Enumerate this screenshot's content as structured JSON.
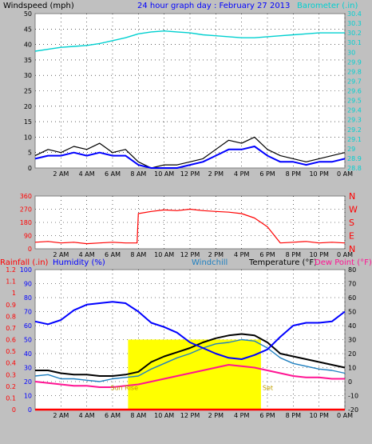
{
  "title": "24 hour graph day : February 27 2013",
  "x_labels": [
    "2 AM",
    "4 AM",
    "6 AM",
    "8 AM",
    "10 AM",
    "12 PM",
    "2 PM",
    "4 PM",
    "6 PM",
    "8 PM",
    "10 PM",
    "0 AM"
  ],
  "colors": {
    "background": "#c0c0c0",
    "plot": "#ffffff",
    "windspeed": "#000000",
    "gust_avg": "#0000ff",
    "barometer": "#00d0d0",
    "direction": "#ff0000",
    "humidity": "#0000ff",
    "windchill": "#2080c0",
    "temperature": "#000000",
    "dewpoint": "#ff1493",
    "rainfall": "#ff0000",
    "solar": "#ffff00"
  },
  "chart_data": [
    {
      "type": "line",
      "name": "wind_barometer",
      "left_axis_label": "Windspeed (mph)",
      "right_axis_label": "Barometer (.in)",
      "ylim_left": [
        0,
        50
      ],
      "left_ticks": [
        "0",
        "5",
        "10",
        "15",
        "20",
        "25",
        "30",
        "35",
        "40",
        "45",
        "50"
      ],
      "ylim_right": [
        28.8,
        30.4
      ],
      "right_ticks": [
        "28.8",
        "28.9",
        "29",
        "29.1",
        "29.2",
        "29.3",
        "29.4",
        "29.5",
        "29.6",
        "29.7",
        "29.8",
        "29.9",
        "30",
        "30.1",
        "30.2",
        "30.3",
        "30.4"
      ],
      "x_hours": [
        0,
        1,
        2,
        3,
        4,
        5,
        6,
        7,
        8,
        9,
        10,
        11,
        12,
        13,
        14,
        15,
        16,
        17,
        18,
        19,
        20,
        21,
        22,
        23,
        24
      ],
      "windspeed": [
        4,
        6,
        5,
        7,
        6,
        8,
        5,
        6,
        2,
        0,
        1,
        1,
        2,
        3,
        6,
        9,
        8,
        10,
        6,
        4,
        3,
        2,
        3,
        4,
        5
      ],
      "wind_avg": [
        3,
        4,
        4,
        5,
        4,
        5,
        4,
        4,
        1,
        0,
        0,
        0,
        1,
        2,
        4,
        6,
        6,
        7,
        4,
        2,
        2,
        1,
        2,
        2,
        3
      ],
      "barometer": [
        30.01,
        30.03,
        30.05,
        30.06,
        30.07,
        30.09,
        30.12,
        30.15,
        30.19,
        30.21,
        30.22,
        30.21,
        30.2,
        30.18,
        30.17,
        30.16,
        30.15,
        30.15,
        30.16,
        30.17,
        30.18,
        30.19,
        30.2,
        30.2,
        30.2
      ]
    },
    {
      "type": "line",
      "name": "wind_direction",
      "left_ticks": [
        "0",
        "90",
        "180",
        "270",
        "360"
      ],
      "ylim": [
        0,
        360
      ],
      "right_ticks": [
        "N",
        "E",
        "S",
        "W",
        "N"
      ],
      "x_hours": [
        0,
        1,
        2,
        3,
        4,
        5,
        6,
        7,
        7.9,
        8,
        9,
        10,
        11,
        12,
        13,
        14,
        15,
        16,
        17,
        18,
        19,
        20,
        21,
        22,
        23,
        24
      ],
      "direction": [
        45,
        50,
        40,
        45,
        35,
        40,
        45,
        40,
        40,
        240,
        255,
        265,
        260,
        270,
        260,
        255,
        250,
        240,
        210,
        150,
        40,
        45,
        50,
        40,
        45,
        40
      ]
    },
    {
      "type": "line",
      "name": "temperature_humidity",
      "labels": [
        "Rainfall (.in)",
        "Humidity (%)",
        "Windchill",
        "Temperature (°F)",
        "Dew Point (°F)"
      ],
      "rain_ticks": [
        "0",
        "0.1",
        "0.2",
        "0.3",
        "0.4",
        "0.5",
        "0.6",
        "0.7",
        "0.8",
        "0.9",
        "1",
        "1.1",
        "1.2"
      ],
      "ylim_rain": [
        0,
        1.2
      ],
      "humidity_ticks": [
        "0",
        "10",
        "20",
        "30",
        "40",
        "50",
        "60",
        "70",
        "80",
        "90",
        "100"
      ],
      "ylim_humidity": [
        0,
        100
      ],
      "temp_ticks": [
        "-20",
        "-10",
        "0",
        "10",
        "20",
        "30",
        "40",
        "50",
        "60",
        "70",
        "80"
      ],
      "ylim_temp": [
        -20,
        80
      ],
      "sun_rise_label": "Sun Rise",
      "sun_set_label": "Set",
      "sun_rise_hour": 7.2,
      "sun_set_hour": 17.5,
      "solar_level_temp": 30,
      "x_hours": [
        0,
        1,
        2,
        3,
        4,
        5,
        6,
        7,
        8,
        9,
        10,
        11,
        12,
        13,
        14,
        15,
        16,
        17,
        18,
        19,
        20,
        21,
        22,
        23,
        24
      ],
      "temperature": [
        8,
        8,
        6,
        5,
        5,
        4,
        4,
        5,
        7,
        14,
        18,
        21,
        24,
        28,
        31,
        33,
        34,
        33,
        28,
        20,
        18,
        16,
        14,
        12,
        10
      ],
      "humidity": [
        63,
        61,
        64,
        71,
        75,
        76,
        77,
        76,
        70,
        62,
        59,
        55,
        48,
        44,
        40,
        37,
        36,
        39,
        43,
        52,
        60,
        62,
        62,
        63,
        70
      ],
      "dewpoint": [
        0,
        -1,
        -2,
        -3,
        -3,
        -4,
        -4,
        -3,
        -2,
        0,
        2,
        4,
        6,
        8,
        10,
        12,
        11,
        10,
        8,
        6,
        4,
        3,
        3,
        2,
        2
      ],
      "windchill": [
        4,
        5,
        2,
        2,
        1,
        0,
        2,
        3,
        4,
        9,
        13,
        17,
        20,
        24,
        27,
        28,
        30,
        29,
        24,
        17,
        13,
        11,
        9,
        8,
        6
      ],
      "rainfall": [
        0,
        0,
        0,
        0,
        0,
        0,
        0,
        0,
        0,
        0,
        0,
        0,
        0,
        0,
        0,
        0,
        0,
        0,
        0,
        0,
        0,
        0,
        0,
        0,
        0
      ]
    }
  ]
}
